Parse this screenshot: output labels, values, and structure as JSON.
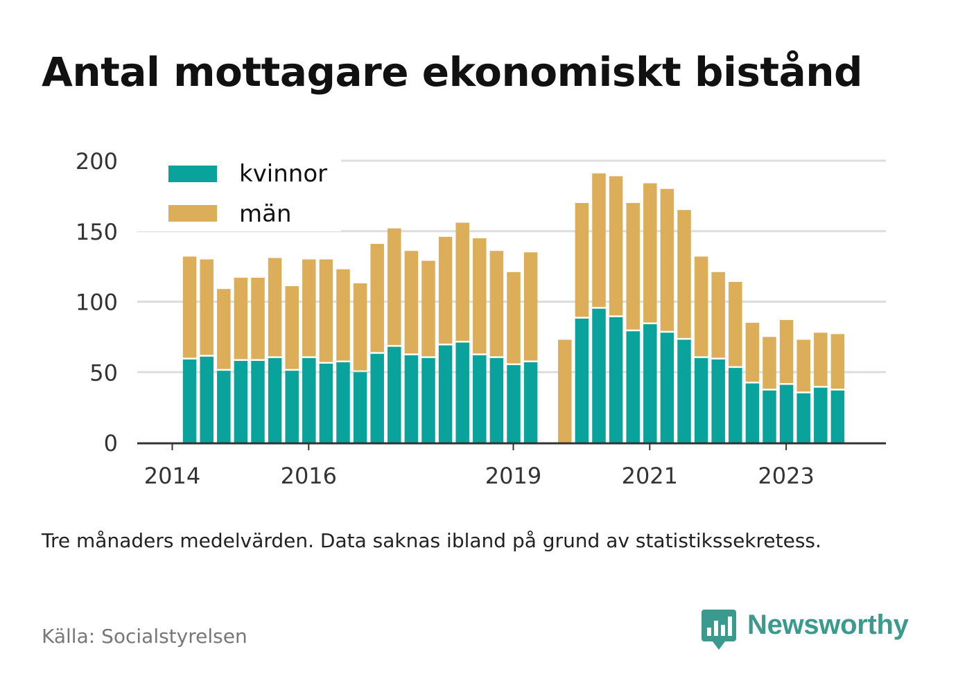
{
  "header": {
    "title": "Antal mottagare ekonomiskt bistånd"
  },
  "footer": {
    "note": "Tre månaders medelvärden. Data saknas ibland på grund av statistikssekretess.",
    "source": "Källa: Socialstyrelsen",
    "brand_name": "Newsworthy",
    "brand_icon": "bar-chart-speech-bubble-icon"
  },
  "colors": {
    "kvinnor": "#0aa39b",
    "man": "#dcae5a",
    "grid": "#dddddd",
    "axis": "#333333",
    "brand": "#3a9a8e"
  },
  "chart_data": {
    "type": "bar",
    "stacked": true,
    "title": "Antal mottagare ekonomiskt bistånd",
    "xlabel": "",
    "ylabel": "",
    "ylim": [
      0,
      200
    ],
    "yticks": [
      0,
      50,
      100,
      150,
      200
    ],
    "x_tick_labels": [
      {
        "label": "2014",
        "index": 0
      },
      {
        "label": "2016",
        "index": 8
      },
      {
        "label": "2019",
        "index": 20
      },
      {
        "label": "2021",
        "index": 28
      },
      {
        "label": "2023",
        "index": 36
      }
    ],
    "legend_position": "top-left",
    "grid": "horizontal",
    "series": [
      {
        "name": "kvinnor",
        "values": [
          null,
          59,
          61,
          51,
          58,
          58,
          60,
          51,
          60,
          56,
          57,
          50,
          63,
          68,
          62,
          60,
          69,
          71,
          62,
          60,
          55,
          57,
          null,
          0,
          88,
          95,
          89,
          79,
          84,
          78,
          73,
          60,
          59,
          53,
          42,
          37,
          41,
          35,
          39,
          37
        ]
      },
      {
        "name": "män",
        "values": [
          null,
          73,
          69,
          58,
          59,
          59,
          71,
          60,
          70,
          74,
          66,
          63,
          78,
          84,
          74,
          69,
          77,
          85,
          83,
          76,
          66,
          78,
          null,
          73,
          82,
          96,
          100,
          91,
          100,
          102,
          92,
          72,
          62,
          61,
          43,
          38,
          46,
          38,
          39,
          40
        ]
      }
    ]
  }
}
